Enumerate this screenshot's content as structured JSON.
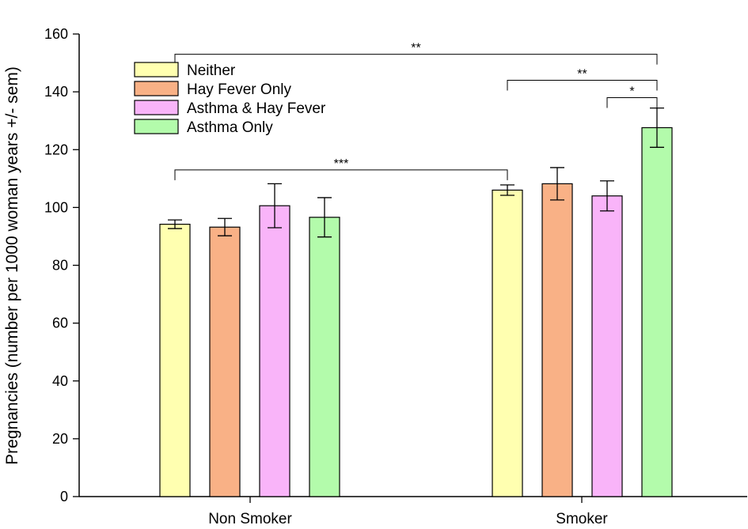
{
  "chart_data": {
    "type": "bar",
    "title": "",
    "xlabel": "",
    "ylabel": "Pregnancies (number per 1000 woman years +/- sem)",
    "ylim": [
      0,
      160
    ],
    "yticks": [
      0,
      20,
      40,
      60,
      80,
      100,
      120,
      140,
      160
    ],
    "categories": [
      "Non Smoker",
      "Smoker"
    ],
    "series": [
      {
        "name": "Neither",
        "color": "#ffffb0",
        "values": [
          94.2,
          106.0
        ],
        "errors": [
          1.5,
          1.8
        ]
      },
      {
        "name": "Hay Fever Only",
        "color": "#f9b186",
        "values": [
          93.2,
          108.2
        ],
        "errors": [
          3.0,
          5.6
        ]
      },
      {
        "name": "Asthma & Hay Fever",
        "color": "#f9b4f9",
        "values": [
          100.6,
          104.0
        ],
        "errors": [
          7.6,
          5.2
        ]
      },
      {
        "name": "Asthma Only",
        "color": "#b3fbab",
        "values": [
          96.6,
          127.6
        ],
        "errors": [
          6.8,
          6.8
        ]
      }
    ],
    "legend_position": "top-left",
    "grid": false,
    "significance": [
      {
        "label": "***",
        "from": [
          0,
          0
        ],
        "to": [
          1,
          0
        ],
        "y": 113.0
      },
      {
        "label": "**",
        "from": [
          1,
          3
        ],
        "to": [
          0,
          0
        ],
        "y": 153.0,
        "note": ""
      },
      {
        "label": "**",
        "from": [
          1,
          0
        ],
        "to": [
          1,
          3
        ],
        "y": 144.0
      },
      {
        "label": "*",
        "from": [
          1,
          2
        ],
        "to": [
          1,
          3
        ],
        "y": 138.0
      }
    ]
  }
}
